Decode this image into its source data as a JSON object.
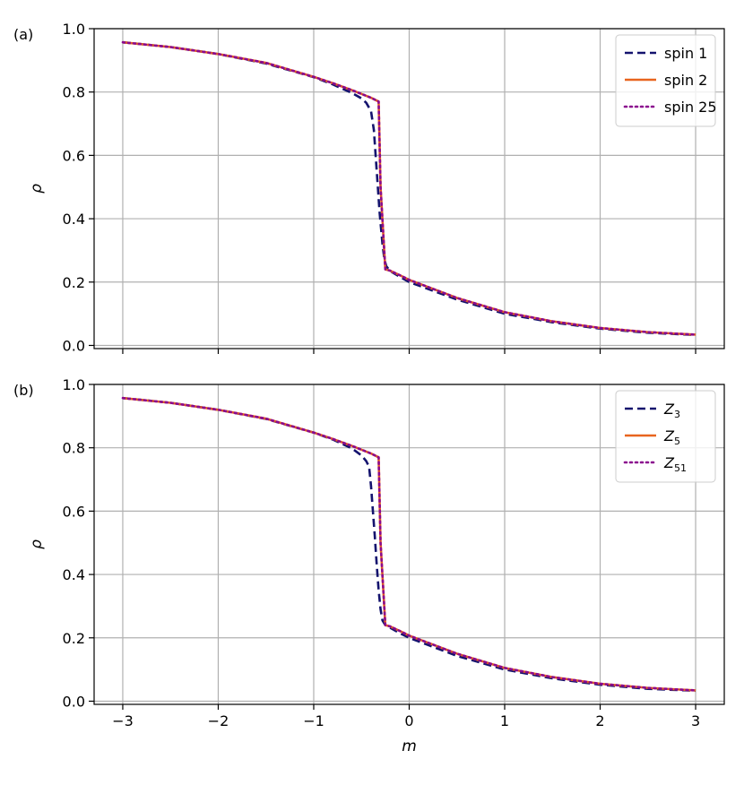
{
  "chart_data": [
    {
      "panel_label": "(a)",
      "type": "line",
      "xlabel": "",
      "ylabel": "ρ",
      "xlim": [
        -3.3,
        3.3
      ],
      "ylim": [
        -0.01,
        1.0
      ],
      "xticks": [
        -3,
        -2,
        -1,
        0,
        1,
        2,
        3
      ],
      "xtick_labels": [],
      "yticks": [
        0.0,
        0.2,
        0.4,
        0.6,
        0.8,
        1.0
      ],
      "ytick_labels": [
        "0.0",
        "0.2",
        "0.4",
        "0.6",
        "0.8",
        "1.0"
      ],
      "grid": true,
      "legend": "top-right",
      "series": [
        {
          "name": "spin 1",
          "color": "#14136e",
          "style": "dashed",
          "x": [
            -3.0,
            -2.5,
            -2.0,
            -1.5,
            -1.0,
            -0.8,
            -0.6,
            -0.5,
            -0.45,
            -0.4,
            -0.37,
            -0.34,
            -0.31,
            -0.28,
            -0.26,
            -0.24,
            -0.2,
            -0.1,
            0.0,
            0.5,
            1.0,
            1.5,
            2.0,
            2.5,
            3.0
          ],
          "y": [
            0.957,
            0.942,
            0.92,
            0.89,
            0.847,
            0.824,
            0.797,
            0.78,
            0.766,
            0.74,
            0.68,
            0.55,
            0.42,
            0.32,
            0.272,
            0.25,
            0.235,
            0.217,
            0.2,
            0.145,
            0.1,
            0.073,
            0.053,
            0.04,
            0.033
          ]
        },
        {
          "name": "spin 2",
          "color": "#e8641e",
          "style": "solid",
          "x": [
            -3.0,
            -2.5,
            -2.0,
            -1.5,
            -1.0,
            -0.8,
            -0.6,
            -0.4,
            -0.32,
            -0.3,
            -0.25,
            -0.2,
            -0.1,
            0.0,
            0.5,
            1.0,
            1.5,
            2.0,
            2.5,
            3.0
          ],
          "y": [
            0.957,
            0.942,
            0.92,
            0.892,
            0.848,
            0.828,
            0.806,
            0.782,
            0.77,
            0.5,
            0.24,
            0.236,
            0.222,
            0.207,
            0.15,
            0.105,
            0.076,
            0.055,
            0.042,
            0.034
          ]
        },
        {
          "name": "spin 25",
          "color": "#8b0a8e",
          "style": "dotted",
          "x": [
            -3.0,
            -2.5,
            -2.0,
            -1.5,
            -1.0,
            -0.8,
            -0.6,
            -0.4,
            -0.32,
            -0.3,
            -0.25,
            -0.2,
            -0.1,
            0.0,
            0.5,
            1.0,
            1.5,
            2.0,
            2.5,
            3.0
          ],
          "y": [
            0.957,
            0.942,
            0.92,
            0.892,
            0.848,
            0.828,
            0.806,
            0.782,
            0.77,
            0.5,
            0.24,
            0.236,
            0.222,
            0.207,
            0.15,
            0.105,
            0.076,
            0.055,
            0.042,
            0.034
          ]
        }
      ]
    },
    {
      "panel_label": "(b)",
      "type": "line",
      "xlabel": "m",
      "ylabel": "ρ",
      "xlim": [
        -3.3,
        3.3
      ],
      "ylim": [
        -0.01,
        1.0
      ],
      "xticks": [
        -3,
        -2,
        -1,
        0,
        1,
        2,
        3
      ],
      "xtick_labels": [
        "−3",
        "−2",
        "−1",
        "0",
        "1",
        "2",
        "3"
      ],
      "yticks": [
        0.0,
        0.2,
        0.4,
        0.6,
        0.8,
        1.0
      ],
      "ytick_labels": [
        "0.0",
        "0.2",
        "0.4",
        "0.6",
        "0.8",
        "1.0"
      ],
      "grid": true,
      "legend": "top-right",
      "series": [
        {
          "name": "Z",
          "subscript": "3",
          "color": "#14136e",
          "style": "dashed",
          "x": [
            -3.0,
            -2.5,
            -2.0,
            -1.5,
            -1.0,
            -0.8,
            -0.6,
            -0.5,
            -0.45,
            -0.42,
            -0.4,
            -0.38,
            -0.36,
            -0.34,
            -0.32,
            -0.3,
            -0.28,
            -0.25,
            -0.2,
            -0.1,
            0.0,
            0.5,
            1.0,
            1.5,
            2.0,
            2.5,
            3.0
          ],
          "y": [
            0.957,
            0.942,
            0.92,
            0.891,
            0.848,
            0.826,
            0.798,
            0.776,
            0.758,
            0.74,
            0.68,
            0.6,
            0.52,
            0.43,
            0.35,
            0.29,
            0.255,
            0.24,
            0.232,
            0.215,
            0.2,
            0.143,
            0.1,
            0.072,
            0.052,
            0.039,
            0.033
          ]
        },
        {
          "name": "Z",
          "subscript": "5",
          "color": "#e8641e",
          "style": "solid",
          "x": [
            -3.0,
            -2.5,
            -2.0,
            -1.5,
            -1.0,
            -0.8,
            -0.6,
            -0.4,
            -0.32,
            -0.3,
            -0.25,
            -0.2,
            -0.1,
            0.0,
            0.5,
            1.0,
            1.5,
            2.0,
            2.5,
            3.0
          ],
          "y": [
            0.957,
            0.942,
            0.92,
            0.892,
            0.848,
            0.828,
            0.806,
            0.782,
            0.77,
            0.5,
            0.24,
            0.236,
            0.222,
            0.207,
            0.15,
            0.105,
            0.076,
            0.055,
            0.042,
            0.034
          ]
        },
        {
          "name": "Z",
          "subscript": "51",
          "color": "#8b0a8e",
          "style": "dotted",
          "x": [
            -3.0,
            -2.5,
            -2.0,
            -1.5,
            -1.0,
            -0.8,
            -0.6,
            -0.4,
            -0.32,
            -0.3,
            -0.25,
            -0.2,
            -0.1,
            0.0,
            0.5,
            1.0,
            1.5,
            2.0,
            2.5,
            3.0
          ],
          "y": [
            0.957,
            0.942,
            0.92,
            0.892,
            0.848,
            0.828,
            0.806,
            0.782,
            0.77,
            0.5,
            0.24,
            0.236,
            0.222,
            0.207,
            0.15,
            0.105,
            0.076,
            0.055,
            0.042,
            0.034
          ]
        }
      ]
    }
  ]
}
